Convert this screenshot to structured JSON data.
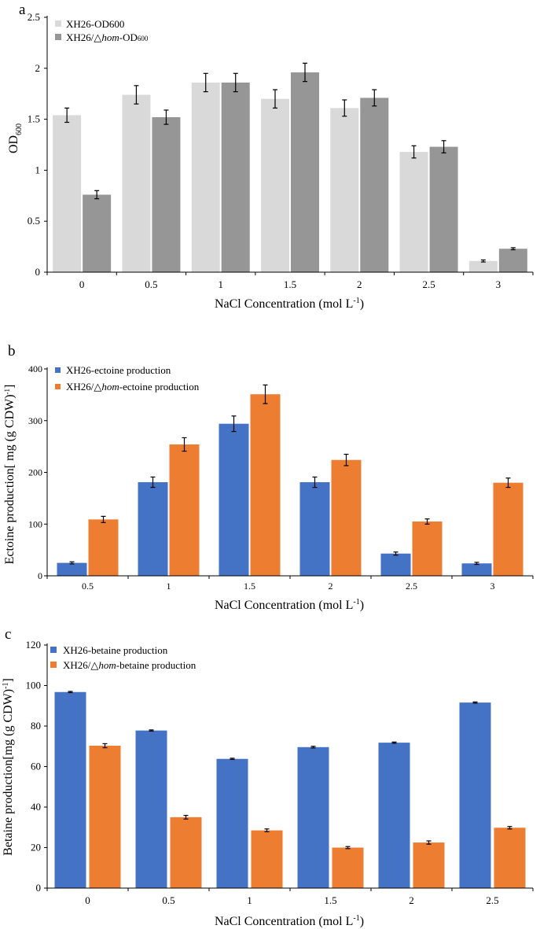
{
  "chart_data": [
    {
      "panel_label": "a",
      "type": "bar",
      "title": "",
      "xlabel": "NaCl Concentration (mol L",
      "xlabel_sup": "-1",
      "xlabel_end": ")",
      "ylabel": "OD",
      "ylabel_sub": "600",
      "ylim": [
        0,
        2.5
      ],
      "yticks": [
        "0",
        "0.5",
        "1",
        "1.5",
        "2",
        "2.5"
      ],
      "ytick_values": [
        0,
        0.5,
        1,
        1.5,
        2,
        2.5
      ],
      "categories": [
        "0",
        "0.5",
        "1",
        "1.5",
        "2",
        "2.5",
        "3"
      ],
      "legend_position": "top-left",
      "series": [
        {
          "name": "XH26-OD600",
          "color": "#d9d9d9",
          "legend_parts": [
            "XH26-OD600"
          ],
          "values": [
            1.54,
            1.74,
            1.86,
            1.7,
            1.61,
            1.18,
            0.11
          ],
          "errors": [
            0.07,
            0.09,
            0.09,
            0.09,
            0.08,
            0.06,
            0.01
          ]
        },
        {
          "name": "XH26/△hom-OD600",
          "color": "#969696",
          "legend_parts": [
            "XH26/△",
            "hom",
            "-OD",
            "600"
          ],
          "values": [
            0.76,
            1.52,
            1.86,
            1.96,
            1.71,
            1.23,
            0.23
          ],
          "errors": [
            0.04,
            0.07,
            0.09,
            0.09,
            0.08,
            0.06,
            0.01
          ]
        }
      ]
    },
    {
      "panel_label": "b",
      "type": "bar",
      "title": "",
      "xlabel": "NaCl Concentration (mol L",
      "xlabel_sup": "-1",
      "xlabel_end": ")",
      "ylabel": "Ectoine production[ mg (g CDW)",
      "ylabel_sup": "-1",
      "ylabel_end": "]",
      "ylim": [
        0,
        400
      ],
      "yticks": [
        "0",
        "100",
        "200",
        "300",
        "400"
      ],
      "ytick_values": [
        0,
        100,
        200,
        300,
        400
      ],
      "categories": [
        "0.5",
        "1",
        "1.5",
        "2",
        "2.5",
        "3"
      ],
      "legend_position": "top-left",
      "series": [
        {
          "name": "XH26-ectoine production",
          "color": "#4472c4",
          "legend_parts": [
            "XH26-ectoine production"
          ],
          "values": [
            25,
            181,
            294,
            181,
            43,
            24
          ],
          "errors": [
            2,
            10,
            15,
            10,
            3,
            2
          ]
        },
        {
          "name": "XH26/△hom-ectoine production",
          "color": "#ed7d31",
          "legend_parts": [
            "XH26/△",
            "hom",
            "-ectoine production"
          ],
          "values": [
            109,
            254,
            351,
            224,
            105,
            180
          ],
          "errors": [
            6,
            13,
            18,
            11,
            5,
            9
          ]
        }
      ]
    },
    {
      "panel_label": "c",
      "type": "bar",
      "title": "",
      "xlabel": "NaCl Concentration (mol L",
      "xlabel_sup": "-1",
      "xlabel_end": ")",
      "ylabel": "Betaine production[mg (g CDW)",
      "ylabel_sup": "-1",
      "ylabel_end": "]",
      "ylim": [
        0,
        120
      ],
      "yticks": [
        "0",
        "20",
        "40",
        "60",
        "80",
        "100",
        "120"
      ],
      "ytick_values": [
        0,
        20,
        40,
        60,
        80,
        100,
        120
      ],
      "categories": [
        "0",
        "0.5",
        "1",
        "1.5",
        "2",
        "2.5"
      ],
      "legend_position": "top-left",
      "series": [
        {
          "name": "XH26-betaine production",
          "color": "#4472c4",
          "legend_parts": [
            "XH26-betaine production"
          ],
          "values": [
            96.8,
            77.8,
            63.8,
            69.6,
            71.8,
            91.6
          ],
          "errors": [
            0.3,
            0.3,
            0.3,
            0.4,
            0.3,
            0.3
          ]
        },
        {
          "name": "XH26/△hom-betaine production",
          "color": "#ed7d31",
          "legend_parts": [
            "XH26/△",
            "hom",
            "-betaine production"
          ],
          "values": [
            70.3,
            35.0,
            28.5,
            20.0,
            22.5,
            29.8
          ],
          "errors": [
            1.0,
            0.9,
            0.7,
            0.5,
            0.8,
            0.6
          ]
        }
      ]
    }
  ]
}
